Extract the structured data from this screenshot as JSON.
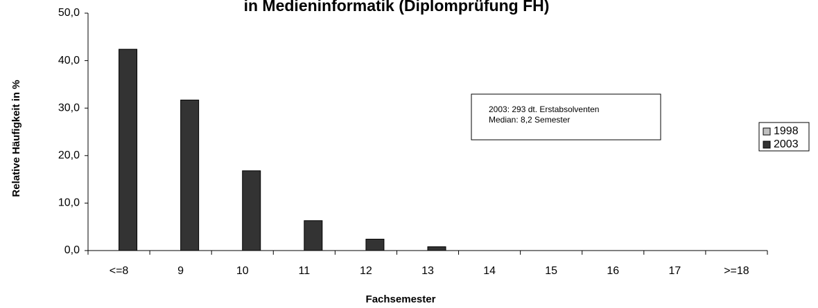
{
  "chart_data": {
    "type": "bar",
    "title": "in Medieninformatik (Diplomprüfung FH)",
    "x_label": "Fachsemester",
    "y_label": "Relative Häufigkeit in %",
    "categories": [
      "<=8",
      "9",
      "10",
      "11",
      "12",
      "13",
      "14",
      "15",
      "16",
      "17",
      ">=18"
    ],
    "series": [
      {
        "name": "1998",
        "color": "#c0c0c0",
        "values": [
          null,
          null,
          null,
          null,
          null,
          null,
          null,
          null,
          null,
          null,
          null
        ]
      },
      {
        "name": "2003",
        "color": "#333333",
        "values": [
          42.4,
          31.7,
          16.8,
          6.3,
          2.4,
          0.8,
          0,
          0,
          0,
          0,
          0
        ]
      }
    ],
    "annotation": [
      "2003: 293 dt. Erstabsolventen",
      "Median: 8,2 Semester"
    ],
    "ylim": [
      0,
      50
    ],
    "yticks": [
      {
        "value": 0,
        "label": "0,0"
      },
      {
        "value": 10,
        "label": "10,0"
      },
      {
        "value": 20,
        "label": "20,0"
      },
      {
        "value": 30,
        "label": "30,0"
      },
      {
        "value": 40,
        "label": "40,0"
      },
      {
        "value": 50,
        "label": "50,0"
      }
    ],
    "legend": "right"
  }
}
